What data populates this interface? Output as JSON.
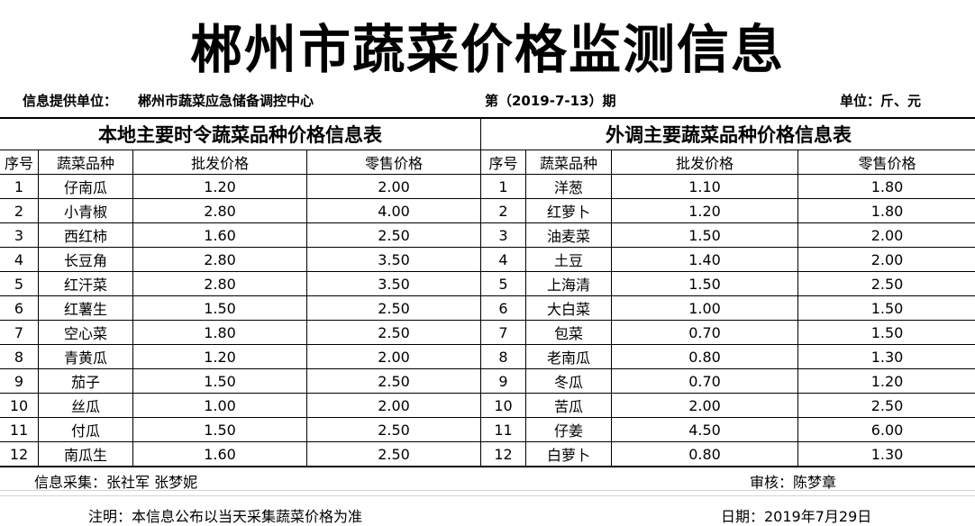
{
  "title": "郴州市蔬菜价格监测信息",
  "info": {
    "provider_label": "信息提供单位：",
    "provider": "郴州市蔬菜应急储备调控中心",
    "issue": "第（2019-7-13）期",
    "unit": "单位：斤、元"
  },
  "left": {
    "title": "本地主要时令蔬菜品种价格信息表",
    "headers": [
      "序号",
      "蔬菜品种",
      "批发价格",
      "零售价格"
    ],
    "rows": [
      [
        "1",
        "仔南瓜",
        "1.20",
        "2.00"
      ],
      [
        "2",
        "小青椒",
        "2.80",
        "4.00"
      ],
      [
        "3",
        "西红柿",
        "1.60",
        "2.50"
      ],
      [
        "4",
        "长豆角",
        "2.80",
        "3.50"
      ],
      [
        "5",
        "红汗菜",
        "2.80",
        "3.50"
      ],
      [
        "6",
        "红薯生",
        "1.50",
        "2.50"
      ],
      [
        "7",
        "空心菜",
        "1.80",
        "2.50"
      ],
      [
        "8",
        "青黄瓜",
        "1.20",
        "2.00"
      ],
      [
        "9",
        "茄子",
        "1.50",
        "2.50"
      ],
      [
        "10",
        "丝瓜",
        "1.00",
        "2.00"
      ],
      [
        "11",
        "付瓜",
        "1.50",
        "2.50"
      ],
      [
        "12",
        "南瓜生",
        "1.60",
        "2.50"
      ]
    ]
  },
  "right": {
    "title": "外调主要蔬菜品种价格信息表",
    "headers": [
      "序号",
      "蔬菜品种",
      "批发价格",
      "零售价格"
    ],
    "rows": [
      [
        "1",
        "洋葱",
        "1.10",
        "1.80"
      ],
      [
        "2",
        "红萝卜",
        "1.20",
        "1.80"
      ],
      [
        "3",
        "油麦菜",
        "1.50",
        "2.00"
      ],
      [
        "4",
        "土豆",
        "1.40",
        "2.00"
      ],
      [
        "5",
        "上海清",
        "1.50",
        "2.50"
      ],
      [
        "6",
        "大白菜",
        "1.00",
        "1.50"
      ],
      [
        "7",
        "包菜",
        "0.70",
        "1.50"
      ],
      [
        "8",
        "老南瓜",
        "0.80",
        "1.30"
      ],
      [
        "9",
        "冬瓜",
        "0.70",
        "1.20"
      ],
      [
        "10",
        "苦瓜",
        "2.00",
        "2.50"
      ],
      [
        "11",
        "仔姜",
        "4.50",
        "6.00"
      ],
      [
        "12",
        "白萝卜",
        "0.80",
        "1.30"
      ]
    ]
  },
  "footer": {
    "collectors": "信息采集：张社军   张梦妮",
    "reviewer": "审核：陈梦章",
    "note": "注明：本信息公布以当天采集蔬菜价格为准",
    "date": "日期：2019年7月29日"
  }
}
